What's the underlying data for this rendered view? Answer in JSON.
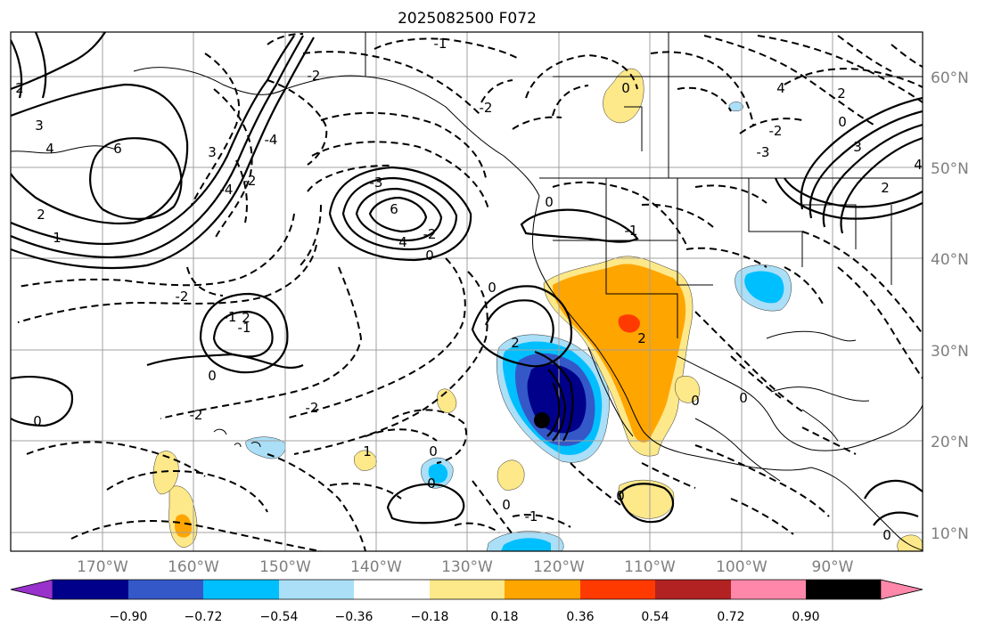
{
  "title": "2025082500 F072",
  "lat_labels": [
    "60°N",
    "50°N",
    "40°N",
    "30°N",
    "20°N",
    "10°N"
  ],
  "lon_labels": [
    "170°W",
    "160°W",
    "150°W",
    "140°W",
    "130°W",
    "120°W",
    "110°W",
    "100°W",
    "90°W"
  ],
  "colorbar": {
    "ticks": [
      "−0.90",
      "−0.72",
      "−0.54",
      "−0.36",
      "−0.18",
      "0.18",
      "0.36",
      "0.54",
      "0.72",
      "0.90"
    ],
    "colors": [
      "#9932cc",
      "#00008b",
      "#3558c8",
      "#00bfff",
      "#aadff7",
      "#ffffff",
      "#fde88a",
      "#ffa500",
      "#ff3a00",
      "#b22222",
      "#ff88aa"
    ]
  },
  "contour_labels": [
    "-1",
    "2",
    "3",
    "-2",
    "6",
    "4",
    "3",
    "-4",
    "6",
    "4",
    "-2",
    "-3",
    "2",
    "-4",
    "-2",
    "-2",
    "0",
    "0",
    "1",
    "0",
    "0",
    "-2",
    "-2",
    "-1",
    "-1",
    "2",
    "0",
    "0",
    "1",
    "0",
    "2",
    "0",
    "-2",
    "0",
    "0",
    "2",
    "-1",
    "0",
    "0",
    "-1",
    "4",
    "-2",
    "-3",
    "2",
    "3",
    "0",
    "0",
    "2",
    "4"
  ],
  "colors": {
    "frame": "#000000",
    "grid": "#a0a0a0",
    "coast": "#000000"
  }
}
